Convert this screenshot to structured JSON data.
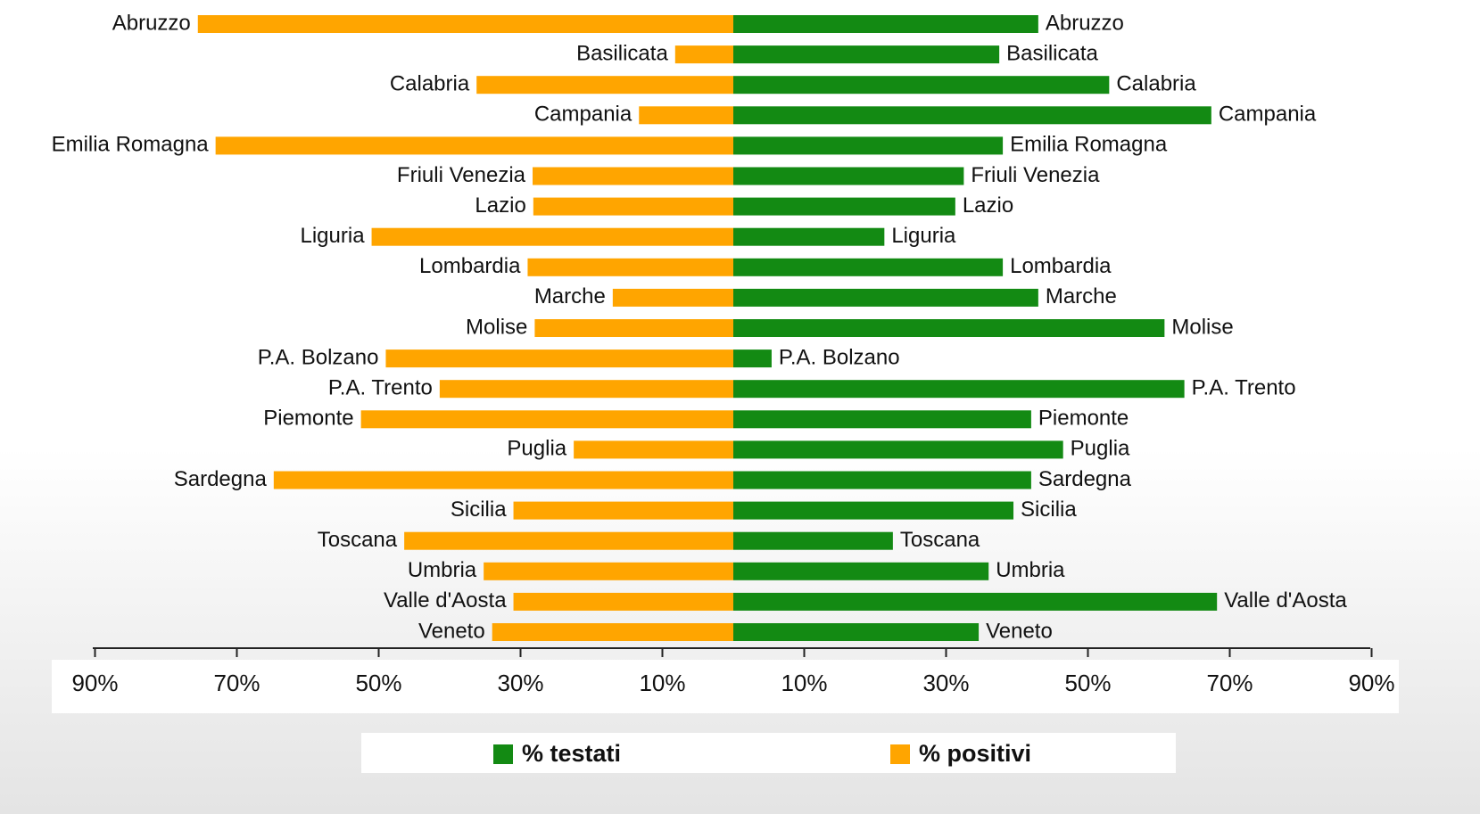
{
  "chart_data": {
    "type": "butterfly-bar",
    "categories": [
      "Abruzzo",
      "Basilicata",
      "Calabria",
      "Campania",
      "Emilia Romagna",
      "Friuli Venezia",
      "Lazio",
      "Liguria",
      "Lombardia",
      "Marche",
      "Molise",
      "P.A. Bolzano",
      "P.A. Trento",
      "Piemonte",
      "Puglia",
      "Sardegna",
      "Sicilia",
      "Toscana",
      "Umbria",
      "Valle d'Aosta",
      "Veneto"
    ],
    "series": [
      {
        "name": "% testati",
        "color": "#138a13",
        "side": "right",
        "values": [
          43,
          37.5,
          53,
          67.4,
          38,
          32.5,
          31.3,
          21.3,
          38,
          43,
          60.8,
          5.4,
          63.6,
          42,
          46.5,
          42,
          39.5,
          22.5,
          36,
          68.2,
          34.6
        ]
      },
      {
        "name": "% positivi",
        "color": "#ffa500",
        "side": "left",
        "values": [
          75.5,
          8.2,
          36.2,
          13.3,
          73,
          28.3,
          28.2,
          51,
          29,
          17,
          28,
          49,
          41.4,
          52.5,
          22.5,
          64.8,
          31,
          46.4,
          35.2,
          31,
          34
        ]
      }
    ],
    "xlim": [
      0,
      90
    ],
    "xticks_left": [
      {
        "value": 90,
        "label": "90%"
      },
      {
        "value": 70,
        "label": "70%"
      },
      {
        "value": 50,
        "label": "50%"
      },
      {
        "value": 30,
        "label": "30%"
      },
      {
        "value": 10,
        "label": "10%"
      }
    ],
    "xticks_right": [
      {
        "value": 10,
        "label": "10%"
      },
      {
        "value": 30,
        "label": "30%"
      },
      {
        "value": 50,
        "label": "50%"
      },
      {
        "value": 70,
        "label": "70%"
      },
      {
        "value": 90,
        "label": "90%"
      }
    ],
    "legend": "bottom"
  }
}
